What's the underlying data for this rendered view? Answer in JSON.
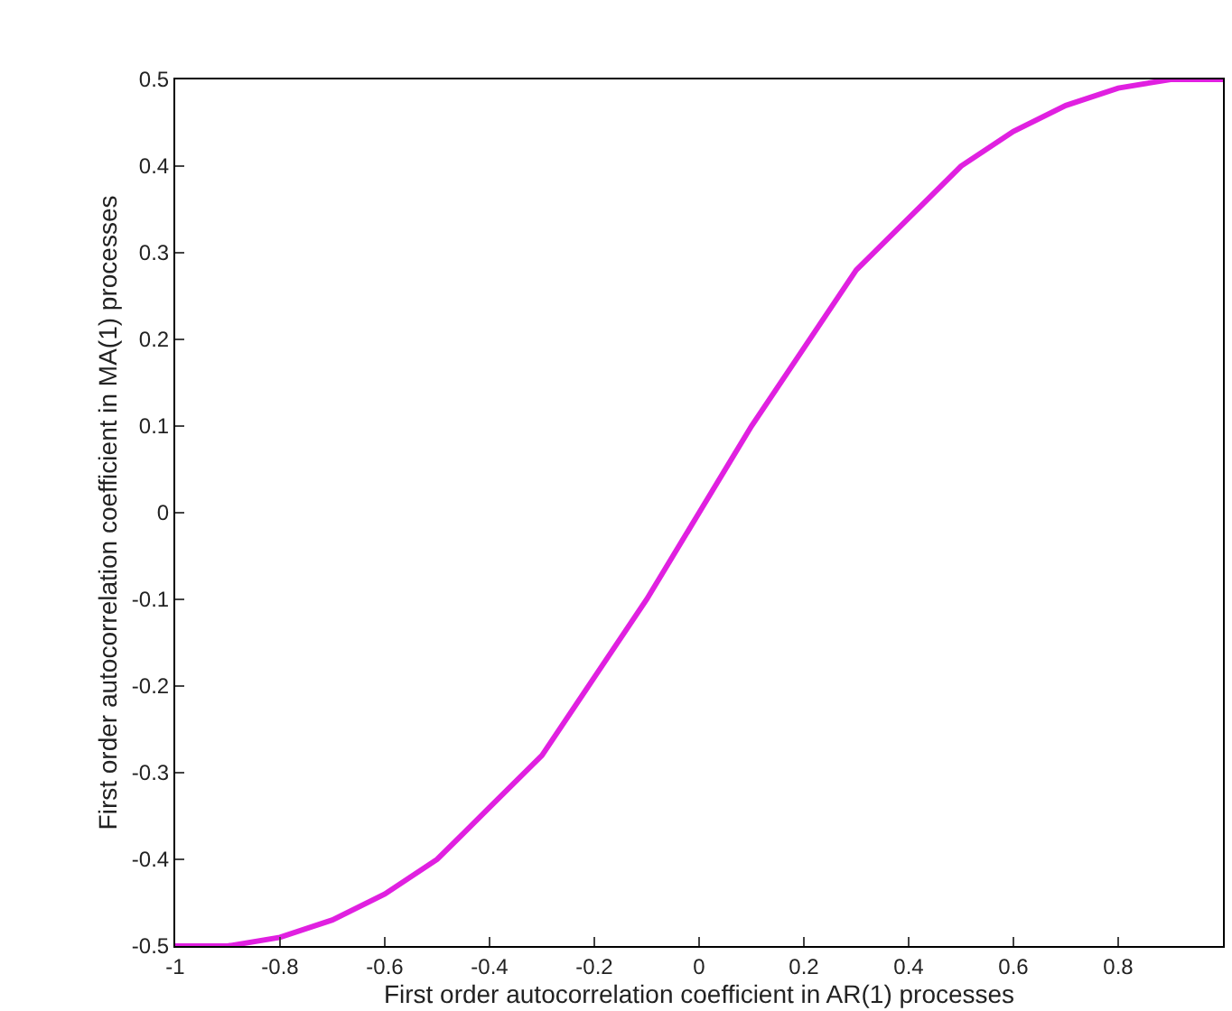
{
  "chart_data": {
    "type": "line",
    "xlabel": "First order autocorrelation coefficient in AR(1) processes",
    "ylabel": "First order autocorrelation coefficient in MA(1) processes",
    "x": [
      -1,
      -0.9,
      -0.8,
      -0.7,
      -0.6,
      -0.5,
      -0.4,
      -0.3,
      -0.2,
      -0.1,
      0,
      0.1,
      0.2,
      0.3,
      0.4,
      0.5,
      0.6,
      0.7,
      0.8,
      0.9,
      1
    ],
    "series": [
      {
        "color": "#e020e0",
        "values": [
          -0.5,
          -0.5,
          -0.49,
          -0.47,
          -0.44,
          -0.4,
          -0.34,
          -0.28,
          -0.19,
          -0.1,
          0,
          0.1,
          0.19,
          0.28,
          0.34,
          0.4,
          0.44,
          0.47,
          0.49,
          0.5,
          0.5
        ]
      }
    ],
    "xlim": [
      -1,
      1
    ],
    "ylim": [
      -0.5,
      0.5
    ],
    "xticks": [
      -1,
      -0.8,
      -0.6,
      -0.4,
      -0.2,
      0,
      0.2,
      0.4,
      0.6,
      0.8
    ],
    "yticks": [
      -0.5,
      -0.4,
      -0.3,
      -0.2,
      -0.1,
      0,
      0.1,
      0.2,
      0.3,
      0.4,
      0.5
    ],
    "marker": "none",
    "line_style": "solid"
  }
}
